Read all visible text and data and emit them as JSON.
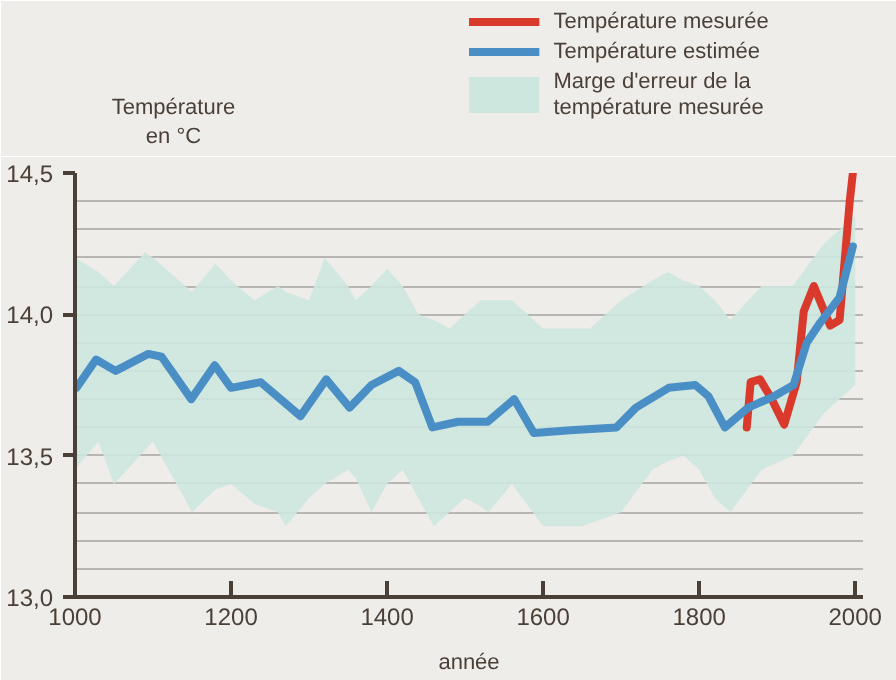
{
  "chart_data": {
    "type": "line",
    "xlabel": "année",
    "ylabel": "Température en °C",
    "xlim": [
      1000,
      2010
    ],
    "ylim": [
      13.0,
      14.5
    ],
    "xticks": [
      1000,
      1200,
      1400,
      1600,
      1800,
      2000
    ],
    "yticks": [
      {
        "value": 13.0,
        "label": "13,0"
      },
      {
        "value": 13.5,
        "label": "13,5"
      },
      {
        "value": 14.0,
        "label": "14,0"
      },
      {
        "value": 14.5,
        "label": "14,5"
      }
    ],
    "grid": "y",
    "legend": "top right",
    "series": [
      {
        "name": "Température mesurée",
        "color": "#d93a2b",
        "x": [
          1861,
          1866,
          1878,
          1893,
          1909,
          1925,
          1934,
          1947,
          1968,
          1980,
          1993,
          1997
        ],
        "values": [
          13.6,
          13.76,
          13.77,
          13.7,
          13.61,
          13.76,
          14.01,
          14.1,
          13.96,
          13.98,
          14.4,
          14.5
        ]
      },
      {
        "name": "Température estimée",
        "color": "#4a8ec6",
        "x": [
          1002,
          1027,
          1052,
          1094,
          1111,
          1149,
          1179,
          1200,
          1238,
          1289,
          1322,
          1352,
          1380,
          1415,
          1436,
          1458,
          1491,
          1529,
          1563,
          1588,
          1635,
          1694,
          1719,
          1761,
          1795,
          1812,
          1833,
          1863,
          1896,
          1921,
          1938,
          1955,
          1980,
          1997
        ],
        "values": [
          13.74,
          13.84,
          13.8,
          13.86,
          13.85,
          13.7,
          13.82,
          13.74,
          13.76,
          13.64,
          13.77,
          13.67,
          13.75,
          13.8,
          13.76,
          13.6,
          13.62,
          13.62,
          13.7,
          13.58,
          13.59,
          13.6,
          13.67,
          13.74,
          13.75,
          13.71,
          13.6,
          13.67,
          13.71,
          13.75,
          13.9,
          13.97,
          14.06,
          14.24
        ]
      },
      {
        "name": "Marge d'erreur de la température mesurée",
        "type": "area",
        "color": "#cde7df",
        "x": [
          1000,
          1030,
          1050,
          1090,
          1100,
          1150,
          1180,
          1200,
          1230,
          1260,
          1270,
          1300,
          1320,
          1350,
          1360,
          1380,
          1400,
          1420,
          1440,
          1460,
          1480,
          1500,
          1520,
          1530,
          1560,
          1600,
          1650,
          1660,
          1700,
          1740,
          1760,
          1780,
          1800,
          1820,
          1840,
          1880,
          1920,
          1960,
          2000
        ],
        "values": [
          null,
          null,
          null,
          null,
          null,
          null,
          null,
          null,
          null,
          null,
          null,
          null,
          null,
          null,
          null,
          null,
          null,
          null,
          null,
          null,
          null,
          null,
          null,
          null,
          null,
          null,
          null,
          null,
          null,
          null,
          null,
          null,
          null,
          null,
          null,
          null,
          null,
          null,
          null
        ],
        "lower": [
          13.45,
          13.55,
          13.4,
          13.52,
          13.55,
          13.3,
          13.38,
          13.4,
          13.33,
          13.3,
          13.25,
          13.35,
          13.4,
          13.45,
          13.42,
          13.3,
          13.4,
          13.45,
          13.35,
          13.25,
          13.3,
          13.35,
          13.32,
          13.3,
          13.4,
          13.25,
          13.25,
          13.26,
          13.3,
          13.45,
          13.48,
          13.5,
          13.45,
          13.35,
          13.3,
          13.45,
          13.5,
          13.65,
          13.75
        ],
        "upper": [
          14.2,
          14.15,
          14.1,
          14.22,
          14.2,
          14.08,
          14.18,
          14.12,
          14.05,
          14.1,
          14.08,
          14.05,
          14.2,
          14.1,
          14.05,
          14.1,
          14.16,
          14.1,
          14.0,
          13.98,
          13.95,
          14.0,
          14.05,
          14.05,
          14.05,
          13.95,
          13.95,
          13.95,
          14.05,
          14.12,
          14.15,
          14.12,
          14.1,
          14.05,
          13.98,
          14.1,
          14.1,
          14.25,
          14.35
        ]
      }
    ]
  }
}
